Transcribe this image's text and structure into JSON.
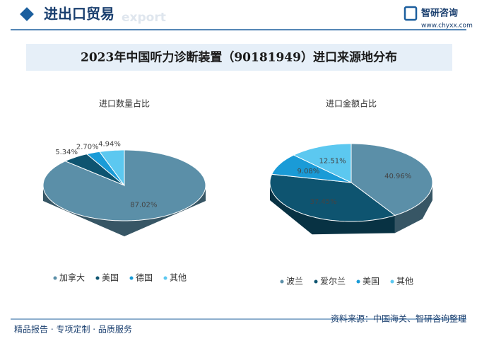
{
  "header": {
    "section": "进出口贸易",
    "section_en": "export",
    "logo": "智研咨询",
    "url": "www.chyxx.com"
  },
  "title": "2023年中国听力诊断装置（90181949）进口来源地分布",
  "chart_data": [
    {
      "type": "pie3d",
      "title": "进口数量占比",
      "categories": [
        "加拿大",
        "美国",
        "德国",
        "其他"
      ],
      "values": [
        87.02,
        5.34,
        2.7,
        4.94
      ],
      "value_labels": [
        "87.02%",
        "5.34%",
        "2.70%",
        "4.94%"
      ],
      "colors": [
        "#5b8fa8",
        "#0e5470",
        "#1a9bd7",
        "#5cc8f0"
      ]
    },
    {
      "type": "pie3d",
      "title": "进口金额占比",
      "categories": [
        "波兰",
        "爱尔兰",
        "美国",
        "其他"
      ],
      "values": [
        40.96,
        37.45,
        9.08,
        12.51
      ],
      "value_labels": [
        "40.96%",
        "37.45%",
        "9.08%",
        "12.51%"
      ],
      "colors": [
        "#5b8fa8",
        "#0e5470",
        "#1a9bd7",
        "#5cc8f0"
      ]
    }
  ],
  "footer": {
    "slogan": "精品报告 · 专项定制 · 品质服务",
    "source": "资料来源：中国海关、智研咨询整理"
  }
}
